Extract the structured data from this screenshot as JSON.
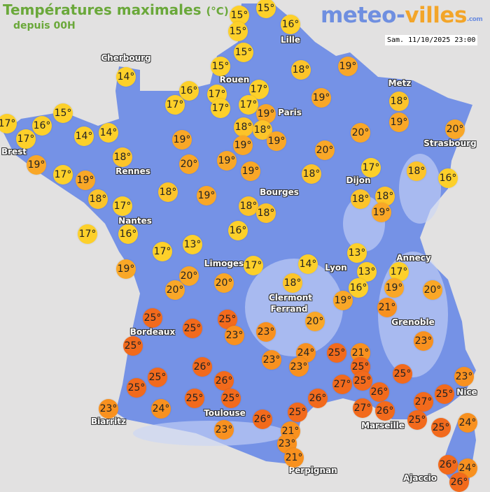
{
  "header": {
    "title": "Températures maximales",
    "title_unit": "(°C)",
    "subtitle": "depuis 00H",
    "logo_text": "meteo-villes.com",
    "timestamp": "Sam. 11/10/2025 23:00"
  },
  "colors": {
    "background": "#e2e1e1",
    "land": "#7592e6",
    "mountain": "#c9d6f6",
    "title": "#6aa83a",
    "scale": [
      {
        "max": 17,
        "color": "#fdd02a"
      },
      {
        "max": 18,
        "color": "#fcc42a"
      },
      {
        "max": 20,
        "color": "#f9a727"
      },
      {
        "max": 24,
        "color": "#f8911f"
      },
      {
        "max": 99,
        "color": "#f26a1c"
      }
    ]
  },
  "cities": [
    "Cherbourg",
    "Lille",
    "Rouen",
    "Paris",
    "Metz",
    "Strasbourg",
    "Brest",
    "Rennes",
    "Nantes",
    "Dijon",
    "Bourges",
    "Limoges",
    "Lyon",
    "Annecy",
    "Clermont",
    "Ferrand",
    "Grenoble",
    "Bordeaux",
    "Toulouse",
    "Biarritz",
    "Marseille",
    "Nice",
    "Perpignan",
    "Ajaccio"
  ],
  "temperatures": [
    15,
    15,
    15,
    16,
    15,
    15,
    14,
    16,
    17,
    17,
    17,
    17,
    17,
    19,
    18,
    18,
    18,
    19,
    19,
    19,
    17,
    17,
    16,
    15,
    14,
    14,
    19,
    17,
    19,
    18,
    19,
    20,
    19,
    19,
    19,
    18,
    19,
    20,
    20,
    20,
    18,
    17,
    18,
    16,
    18,
    18,
    19,
    18,
    17,
    18,
    19,
    18,
    18,
    17,
    16,
    16,
    17,
    13,
    19,
    20,
    20,
    20,
    17,
    14,
    18,
    13,
    13,
    16,
    17,
    19,
    20,
    19,
    21,
    20,
    25,
    25,
    25,
    23,
    23,
    25,
    23,
    23,
    24,
    23,
    25,
    21,
    25,
    26,
    25,
    25,
    26,
    25,
    25,
    27,
    26,
    26,
    27,
    26,
    27,
    23,
    25,
    25,
    25,
    23,
    24,
    25,
    26,
    25,
    25,
    24,
    23,
    21,
    23,
    21,
    26,
    24,
    26
  ],
  "unit_suffix": "°"
}
